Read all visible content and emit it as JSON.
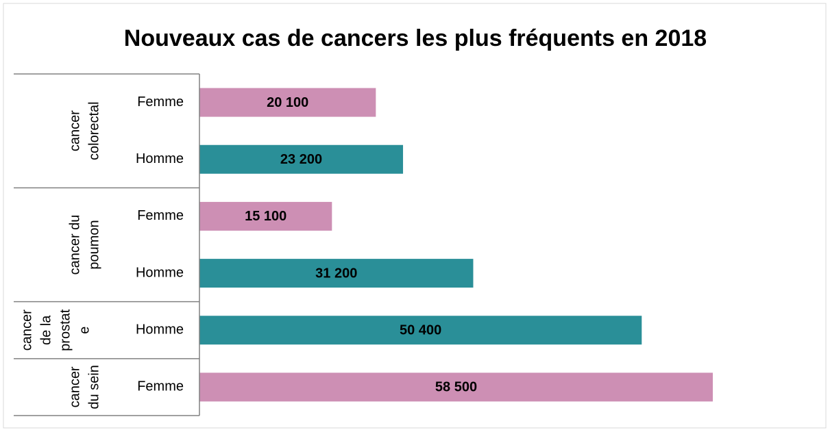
{
  "chart_data": {
    "type": "bar",
    "orientation": "horizontal",
    "title": "Nouveaux cas de cancers les plus fréquents en 2018",
    "groups": [
      {
        "label": [
          "cancer",
          "colorectal"
        ],
        "categories": [
          "Femme",
          "Homme"
        ],
        "values": [
          20100,
          23200
        ],
        "value_labels": [
          "20 100",
          "23 200"
        ],
        "colors": [
          "#cd8fb4",
          "#2a8f98"
        ]
      },
      {
        "label": [
          "cancer du",
          "poumon"
        ],
        "categories": [
          "Femme",
          "Homme"
        ],
        "values": [
          15100,
          31200
        ],
        "value_labels": [
          "15 100",
          "31 200"
        ],
        "colors": [
          "#cd8fb4",
          "#2a8f98"
        ]
      },
      {
        "label": [
          "cancer",
          "de la",
          "prostat",
          "e"
        ],
        "categories": [
          "Homme"
        ],
        "values": [
          50400
        ],
        "value_labels": [
          "50 400"
        ],
        "colors": [
          "#2a8f98"
        ]
      },
      {
        "label": [
          "cancer",
          "du sein"
        ],
        "categories": [
          "Femme"
        ],
        "values": [
          58500
        ],
        "value_labels": [
          "58 500"
        ],
        "colors": [
          "#cd8fb4"
        ]
      }
    ]
  }
}
